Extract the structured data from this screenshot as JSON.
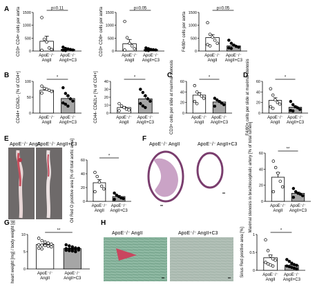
{
  "colors": {
    "bar_angii": "#ffffff",
    "bar_c3": "#a6a6a6",
    "dot_angii": "#ffffff",
    "dot_c3": "#000000"
  },
  "group_labels": {
    "g1_line1": "ApoE⁻/⁻",
    "g1_line2": "AngII",
    "g2_line1": "ApoE⁻/⁻",
    "g2_line2": "AngII+C3"
  },
  "panels": {
    "A": "A",
    "B": "B",
    "C": "C",
    "D": "D",
    "E": "E",
    "F": "F",
    "G": "G",
    "H": "H"
  },
  "image_labels": {
    "E_left": "ApoE⁻/⁻ AngII",
    "E_right": "ApoE⁻/⁻ AngII+C3",
    "F_left": "ApoE⁻/⁻ AngII",
    "F_right": "ApoE⁻/⁻ AngII+C3",
    "H_left": "ApoE⁻/⁻ AngII",
    "H_right": "ApoE⁻/⁻ AngII+C3"
  },
  "chart_data": [
    {
      "id": "A1",
      "type": "bar",
      "ylabel": "CD3+ CD4+ cells per aorta",
      "ylim": [
        0,
        1500
      ],
      "yticks": [
        0,
        500,
        1000,
        1500
      ],
      "sig": "p=0.11",
      "series": [
        {
          "values": [
            380
          ]
        },
        {
          "values": [
            70
          ]
        }
      ],
      "points": [
        [
          1300,
          460,
          350,
          120,
          60,
          30
        ],
        [
          150,
          100,
          80,
          60,
          40,
          30,
          20
        ]
      ]
    },
    {
      "id": "A2",
      "type": "bar",
      "ylabel": "CD3+ CD8+ cells per aorta",
      "ylim": [
        0,
        1500
      ],
      "yticks": [
        0,
        500,
        1000,
        1500
      ],
      "sig": "p=0.05",
      "series": [
        {
          "values": [
            280
          ]
        },
        {
          "values": [
            60
          ]
        }
      ],
      "points": [
        [
          1150,
          520,
          300,
          200,
          90,
          40
        ],
        [
          120,
          90,
          60,
          50,
          40,
          30,
          20
        ]
      ]
    },
    {
      "id": "A3",
      "type": "bar",
      "ylabel": "F4/80+ cells per aorta",
      "ylim": [
        0,
        1500
      ],
      "yticks": [
        0,
        500,
        1000,
        1500
      ],
      "sig": "p=0.05",
      "series": [
        {
          "values": [
            520
          ]
        },
        {
          "values": [
            200
          ]
        }
      ],
      "points": [
        [
          1100,
          650,
          540,
          420,
          300,
          250,
          200
        ],
        [
          420,
          300,
          230,
          180,
          150,
          120,
          100
        ]
      ]
    },
    {
      "id": "B1",
      "type": "bar",
      "ylabel": "CD44+ CD62L- [% of CD4+]",
      "ylim": [
        0,
        100
      ],
      "yticks": [
        0,
        50,
        100
      ],
      "sig": "*",
      "series": [
        {
          "values": [
            72
          ]
        },
        {
          "values": [
            46
          ]
        }
      ],
      "points": [
        [
          85,
          78,
          75,
          72,
          68,
          63
        ],
        [
          80,
          62,
          55,
          45,
          38,
          32,
          28,
          22
        ]
      ]
    },
    {
      "id": "B2",
      "type": "bar",
      "ylabel": "CD44- CD62L+ [% of CD4+]",
      "ylim": [
        0,
        40
      ],
      "yticks": [
        0,
        10,
        20,
        30,
        40
      ],
      "sig": "*",
      "series": [
        {
          "values": [
            7
          ]
        },
        {
          "values": [
            18
          ]
        }
      ],
      "points": [
        [
          12,
          9,
          7,
          5,
          4,
          3
        ],
        [
          30,
          26,
          22,
          18,
          15,
          12,
          9,
          7
        ]
      ]
    },
    {
      "id": "C",
      "type": "bar",
      "ylabel": "CD3+ cells per slide at maximal stenosis",
      "ylim": [
        0,
        60
      ],
      "yticks": [
        0,
        20,
        40,
        60
      ],
      "sig": "*",
      "series": [
        {
          "values": [
            34
          ]
        },
        {
          "values": [
            21
          ]
        }
      ],
      "points": [
        [
          52,
          40,
          36,
          32,
          28,
          22,
          18
        ],
        [
          28,
          25,
          22,
          19,
          16,
          13
        ]
      ]
    },
    {
      "id": "D",
      "type": "bar",
      "ylabel": "F4/80+ cells per slide at maximal stenosis",
      "ylim": [
        0,
        60
      ],
      "yticks": [
        0,
        20,
        40,
        60
      ],
      "sig": "*",
      "series": [
        {
          "values": [
            24
          ]
        },
        {
          "values": [
            11
          ]
        }
      ],
      "points": [
        [
          46,
          34,
          25,
          20,
          17,
          12,
          9
        ],
        [
          22,
          16,
          12,
          10,
          7,
          5,
          4
        ]
      ]
    },
    {
      "id": "E",
      "type": "bar",
      "ylabel": "Oil Red O positive area [% of total aortic area]",
      "ylim": [
        0,
        60
      ],
      "yticks": [
        0,
        20,
        40,
        60
      ],
      "sig": "*",
      "series": [
        {
          "values": [
            27
          ]
        },
        {
          "values": [
            7
          ]
        }
      ],
      "points": [
        [
          42,
          36,
          28,
          22,
          18,
          14
        ],
        [
          12,
          9,
          7,
          5,
          4,
          3
        ]
      ]
    },
    {
      "id": "F",
      "type": "bar",
      "ylabel": "Maximal stenosis in brachiocephalic artery [% of total lumen]",
      "ylim": [
        0,
        60
      ],
      "yticks": [
        0,
        20,
        40,
        60
      ],
      "sig": "**",
      "series": [
        {
          "values": [
            30
          ]
        },
        {
          "values": [
            10
          ]
        }
      ],
      "points": [
        [
          50,
          42,
          35,
          25,
          18,
          12
        ],
        [
          16,
          12,
          10,
          9,
          7,
          5
        ]
      ]
    },
    {
      "id": "G",
      "type": "bar",
      "ylabel": "heart weight [mg] / body weight [g]",
      "ylim": [
        0,
        10
      ],
      "yticks": [
        0,
        5,
        10
      ],
      "sig": "**",
      "series": [
        {
          "values": [
            7.1
          ]
        },
        {
          "values": [
            5.9
          ]
        }
      ],
      "points": [
        [
          8.9,
          8.2,
          7.8,
          7.5,
          7.2,
          7.0,
          6.9,
          6.8,
          6.6,
          6.4,
          6.0,
          5.8
        ],
        [
          7.0,
          6.7,
          6.4,
          6.1,
          6.0,
          5.9,
          5.8,
          5.7,
          5.6,
          5.5,
          5.4,
          5.3,
          5.2,
          5.0
        ]
      ]
    },
    {
      "id": "H",
      "type": "bar",
      "ylabel": "Sirius Red positive area [%]",
      "ylim": [
        0,
        1.0
      ],
      "yticks": [
        0,
        0.5,
        1.0
      ],
      "sig": "*",
      "series": [
        {
          "values": [
            0.35
          ]
        },
        {
          "values": [
            0.14
          ]
        }
      ],
      "points": [
        [
          0.85,
          0.55,
          0.4,
          0.32,
          0.28,
          0.22,
          0.18,
          0.15,
          0.12
        ],
        [
          0.3,
          0.25,
          0.2,
          0.16,
          0.14,
          0.12,
          0.1,
          0.08,
          0.06,
          0.04
        ]
      ]
    }
  ]
}
